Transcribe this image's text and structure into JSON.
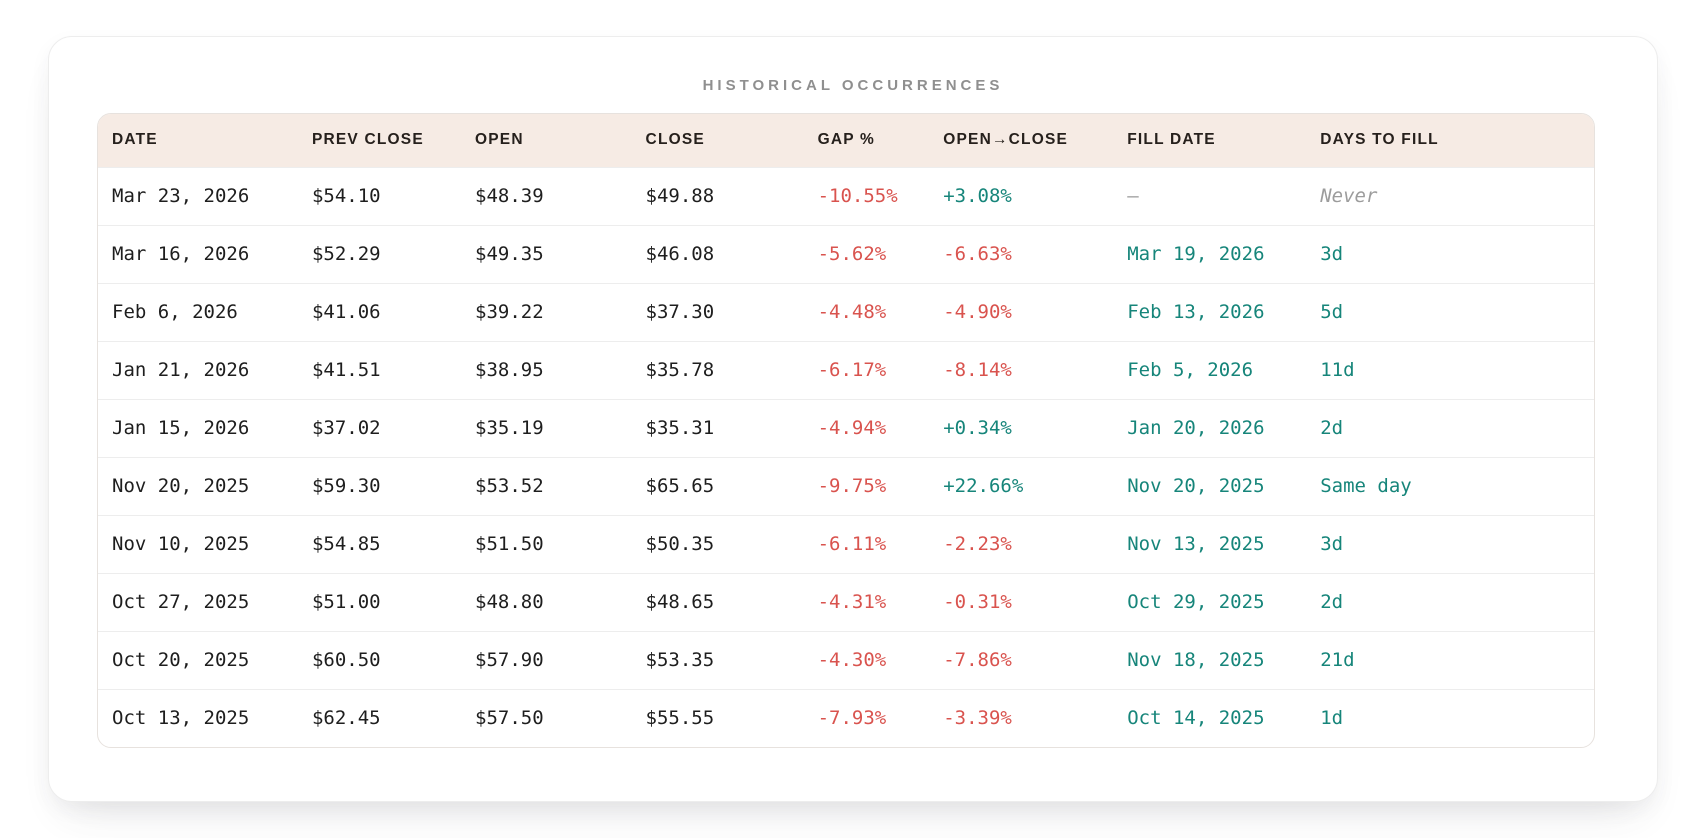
{
  "title": "HISTORICAL OCCURRENCES",
  "chart_data": {
    "type": "table",
    "title": "HISTORICAL OCCURRENCES",
    "columns": [
      "DATE",
      "PREV CLOSE",
      "OPEN",
      "CLOSE",
      "GAP %",
      "OPEN→CLOSE",
      "FILL DATE",
      "DAYS TO FILL"
    ],
    "rows": [
      {
        "date": "Mar 23, 2026",
        "prev_close": "$54.10",
        "open": "$48.39",
        "close": "$49.88",
        "gap_pct": "-10.55%",
        "open_close": "+3.08%",
        "fill_date": "—",
        "days_to_fill": "Never"
      },
      {
        "date": "Mar 16, 2026",
        "prev_close": "$52.29",
        "open": "$49.35",
        "close": "$46.08",
        "gap_pct": "-5.62%",
        "open_close": "-6.63%",
        "fill_date": "Mar 19, 2026",
        "days_to_fill": "3d"
      },
      {
        "date": "Feb 6, 2026",
        "prev_close": "$41.06",
        "open": "$39.22",
        "close": "$37.30",
        "gap_pct": "-4.48%",
        "open_close": "-4.90%",
        "fill_date": "Feb 13, 2026",
        "days_to_fill": "5d"
      },
      {
        "date": "Jan 21, 2026",
        "prev_close": "$41.51",
        "open": "$38.95",
        "close": "$35.78",
        "gap_pct": "-6.17%",
        "open_close": "-8.14%",
        "fill_date": "Feb 5, 2026",
        "days_to_fill": "11d"
      },
      {
        "date": "Jan 15, 2026",
        "prev_close": "$37.02",
        "open": "$35.19",
        "close": "$35.31",
        "gap_pct": "-4.94%",
        "open_close": "+0.34%",
        "fill_date": "Jan 20, 2026",
        "days_to_fill": "2d"
      },
      {
        "date": "Nov 20, 2025",
        "prev_close": "$59.30",
        "open": "$53.52",
        "close": "$65.65",
        "gap_pct": "-9.75%",
        "open_close": "+22.66%",
        "fill_date": "Nov 20, 2025",
        "days_to_fill": "Same day"
      },
      {
        "date": "Nov 10, 2025",
        "prev_close": "$54.85",
        "open": "$51.50",
        "close": "$50.35",
        "gap_pct": "-6.11%",
        "open_close": "-2.23%",
        "fill_date": "Nov 13, 2025",
        "days_to_fill": "3d"
      },
      {
        "date": "Oct 27, 2025",
        "prev_close": "$51.00",
        "open": "$48.80",
        "close": "$48.65",
        "gap_pct": "-4.31%",
        "open_close": "-0.31%",
        "fill_date": "Oct 29, 2025",
        "days_to_fill": "2d"
      },
      {
        "date": "Oct 20, 2025",
        "prev_close": "$60.50",
        "open": "$57.90",
        "close": "$53.35",
        "gap_pct": "-4.30%",
        "open_close": "-7.86%",
        "fill_date": "Nov 18, 2025",
        "days_to_fill": "21d"
      },
      {
        "date": "Oct 13, 2025",
        "prev_close": "$62.45",
        "open": "$57.50",
        "close": "$55.55",
        "gap_pct": "-7.93%",
        "open_close": "-3.39%",
        "fill_date": "Oct 14, 2025",
        "days_to_fill": "1d"
      }
    ],
    "no_fill_placeholder": "—",
    "never_label": "Never"
  },
  "colors": {
    "negative": "#d9534e",
    "positive": "#16857a",
    "fill_accent": "#16857a",
    "muted": "#9c9c9c",
    "header_bg": "#f6ebe4",
    "title_gray": "#8f8f8f",
    "row_text": "#1e1e1e",
    "border": "#e7e2de"
  }
}
